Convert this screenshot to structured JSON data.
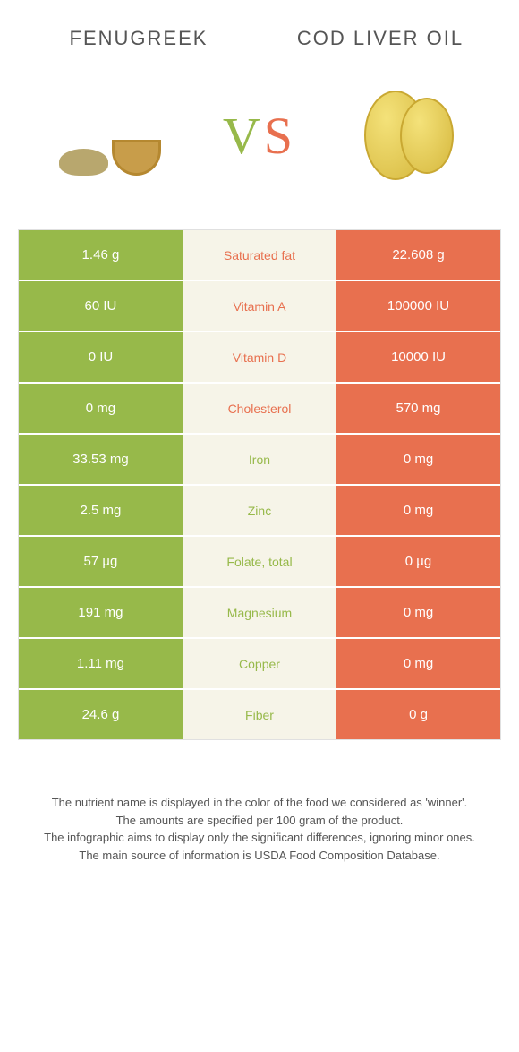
{
  "colors": {
    "left": "#97b94a",
    "right": "#e8704f",
    "mid_bg": "#f6f4e8"
  },
  "header": {
    "left_title": "Fenugreek",
    "right_title": "Cod liver oil",
    "vs_v": "V",
    "vs_s": "S"
  },
  "rows": [
    {
      "left": "1.46 g",
      "label": "Saturated fat",
      "right": "22.608 g",
      "winner": "right"
    },
    {
      "left": "60 IU",
      "label": "Vitamin A",
      "right": "100000 IU",
      "winner": "right"
    },
    {
      "left": "0 IU",
      "label": "Vitamin D",
      "right": "10000 IU",
      "winner": "right"
    },
    {
      "left": "0 mg",
      "label": "Cholesterol",
      "right": "570 mg",
      "winner": "right"
    },
    {
      "left": "33.53 mg",
      "label": "Iron",
      "right": "0 mg",
      "winner": "left"
    },
    {
      "left": "2.5 mg",
      "label": "Zinc",
      "right": "0 mg",
      "winner": "left"
    },
    {
      "left": "57 µg",
      "label": "Folate, total",
      "right": "0 µg",
      "winner": "left"
    },
    {
      "left": "191 mg",
      "label": "Magnesium",
      "right": "0 mg",
      "winner": "left"
    },
    {
      "left": "1.11 mg",
      "label": "Copper",
      "right": "0 mg",
      "winner": "left"
    },
    {
      "left": "24.6 g",
      "label": "Fiber",
      "right": "0 g",
      "winner": "left"
    }
  ],
  "footer": {
    "line1": "The nutrient name is displayed in the color of the food we considered as 'winner'.",
    "line2": "The amounts are specified per 100 gram of the product.",
    "line3": "The infographic aims to display only the significant differences, ignoring minor ones.",
    "line4": "The main source of information is USDA Food Composition Database."
  }
}
